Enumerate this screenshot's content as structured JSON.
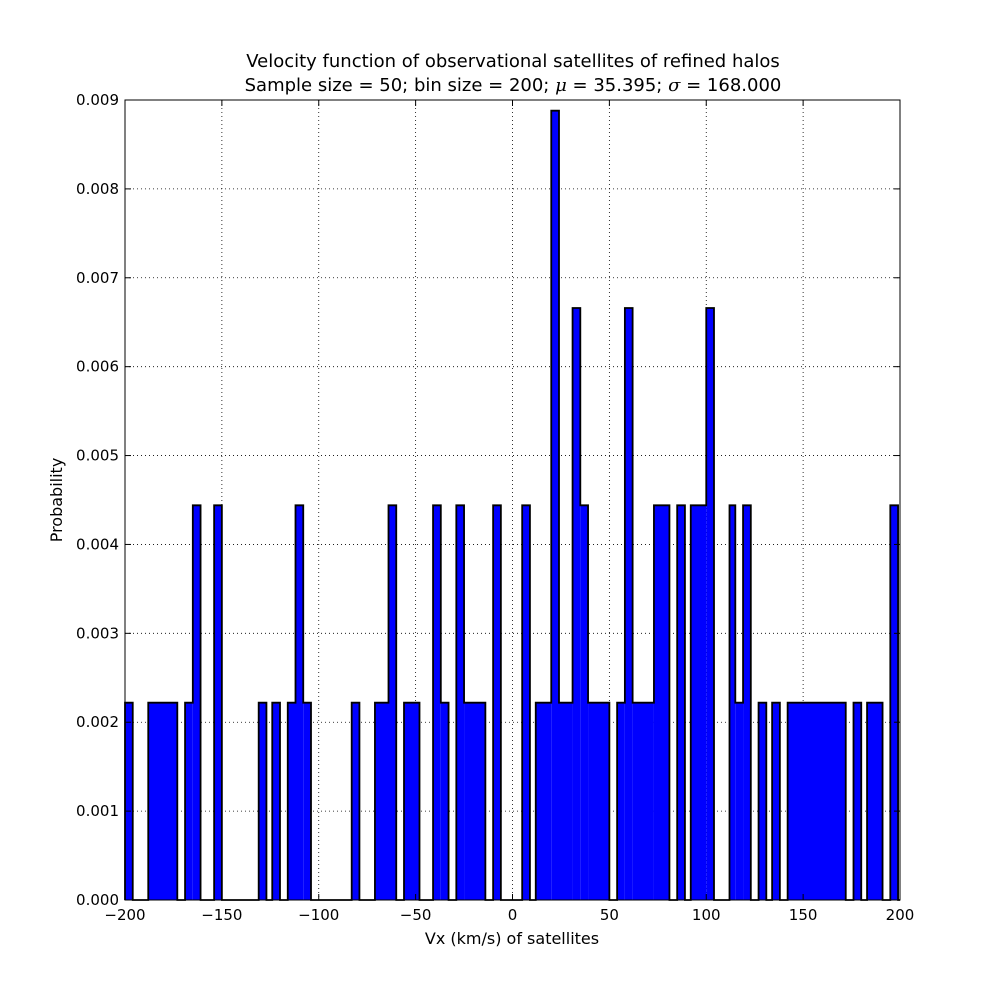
{
  "chart_data": {
    "type": "bar",
    "title": "Velocity function of observational satellites of refined halos",
    "subtitle": {
      "prefix": "Sample size = 50; bin size = 200; ",
      "mu_symbol": "μ",
      "mu_value": " = 35.395; ",
      "sigma_symbol": "σ",
      "sigma_value": " = 168.000"
    },
    "xlabel": "Vx (km/s) of satellites",
    "ylabel": "Probability",
    "xlim": [
      -200,
      200
    ],
    "ylim": [
      0,
      0.009
    ],
    "grid": true,
    "bar_color": "#0000ff",
    "edge_color": "#000000",
    "bin_width": 2,
    "x_ticks": [
      -200,
      -150,
      -100,
      -50,
      0,
      50,
      100,
      150,
      200
    ],
    "x_tick_labels": [
      "−200",
      "−150",
      "−100",
      "−50",
      "0",
      "50",
      "100",
      "150",
      "200"
    ],
    "y_ticks": [
      0,
      0.001,
      0.002,
      0.003,
      0.004,
      0.005,
      0.006,
      0.007,
      0.008,
      0.009
    ],
    "y_tick_labels": [
      "0.000",
      "0.001",
      "0.002",
      "0.003",
      "0.004",
      "0.005",
      "0.006",
      "0.007",
      "0.008",
      "0.009"
    ],
    "unit_value": 0.00222,
    "bins": [
      {
        "x0": -200,
        "x1": -196,
        "units": 1
      },
      {
        "x0": -196,
        "x1": -188,
        "units": 0
      },
      {
        "x0": -188,
        "x1": -173,
        "units": 1
      },
      {
        "x0": -173,
        "x1": -169,
        "units": 0
      },
      {
        "x0": -169,
        "x1": -165,
        "units": 1
      },
      {
        "x0": -165,
        "x1": -161,
        "units": 2
      },
      {
        "x0": -161,
        "x1": -154,
        "units": 0
      },
      {
        "x0": -154,
        "x1": -150,
        "units": 2
      },
      {
        "x0": -150,
        "x1": -131,
        "units": 0
      },
      {
        "x0": -131,
        "x1": -127,
        "units": 1
      },
      {
        "x0": -127,
        "x1": -124,
        "units": 0
      },
      {
        "x0": -124,
        "x1": -120,
        "units": 1
      },
      {
        "x0": -120,
        "x1": -116,
        "units": 0
      },
      {
        "x0": -116,
        "x1": -112,
        "units": 1
      },
      {
        "x0": -112,
        "x1": -108,
        "units": 2
      },
      {
        "x0": -108,
        "x1": -104,
        "units": 1
      },
      {
        "x0": -104,
        "x1": -83,
        "units": 0
      },
      {
        "x0": -83,
        "x1": -79,
        "units": 1
      },
      {
        "x0": -79,
        "x1": -71,
        "units": 0
      },
      {
        "x0": -71,
        "x1": -64,
        "units": 1
      },
      {
        "x0": -64,
        "x1": -60,
        "units": 2
      },
      {
        "x0": -60,
        "x1": -56,
        "units": 0
      },
      {
        "x0": -56,
        "x1": -48,
        "units": 1
      },
      {
        "x0": -48,
        "x1": -41,
        "units": 0
      },
      {
        "x0": -41,
        "x1": -37,
        "units": 2
      },
      {
        "x0": -37,
        "x1": -33,
        "units": 1
      },
      {
        "x0": -33,
        "x1": -29,
        "units": 0
      },
      {
        "x0": -29,
        "x1": -25,
        "units": 2
      },
      {
        "x0": -25,
        "x1": -14,
        "units": 1
      },
      {
        "x0": -14,
        "x1": -10,
        "units": 0
      },
      {
        "x0": -10,
        "x1": -6,
        "units": 2
      },
      {
        "x0": -6,
        "x1": 5,
        "units": 0
      },
      {
        "x0": 5,
        "x1": 9,
        "units": 2
      },
      {
        "x0": 9,
        "x1": 12,
        "units": 0
      },
      {
        "x0": 12,
        "x1": 20,
        "units": 1
      },
      {
        "x0": 20,
        "x1": 24,
        "units": 4
      },
      {
        "x0": 24,
        "x1": 31,
        "units": 1
      },
      {
        "x0": 31,
        "x1": 35,
        "units": 3
      },
      {
        "x0": 35,
        "x1": 39,
        "units": 2
      },
      {
        "x0": 39,
        "x1": 50,
        "units": 1
      },
      {
        "x0": 50,
        "x1": 54,
        "units": 0
      },
      {
        "x0": 54,
        "x1": 58,
        "units": 1
      },
      {
        "x0": 58,
        "x1": 62,
        "units": 3
      },
      {
        "x0": 62,
        "x1": 73,
        "units": 1
      },
      {
        "x0": 73,
        "x1": 81,
        "units": 2
      },
      {
        "x0": 81,
        "x1": 85,
        "units": 0
      },
      {
        "x0": 85,
        "x1": 89,
        "units": 2
      },
      {
        "x0": 89,
        "x1": 92,
        "units": 0
      },
      {
        "x0": 92,
        "x1": 100,
        "units": 2
      },
      {
        "x0": 100,
        "x1": 104,
        "units": 3
      },
      {
        "x0": 104,
        "x1": 112,
        "units": 0
      },
      {
        "x0": 112,
        "x1": 115,
        "units": 2
      },
      {
        "x0": 115,
        "x1": 119,
        "units": 1
      },
      {
        "x0": 119,
        "x1": 123,
        "units": 2
      },
      {
        "x0": 123,
        "x1": 127,
        "units": 0
      },
      {
        "x0": 127,
        "x1": 131,
        "units": 1
      },
      {
        "x0": 131,
        "x1": 134,
        "units": 0
      },
      {
        "x0": 134,
        "x1": 138,
        "units": 1
      },
      {
        "x0": 138,
        "x1": 142,
        "units": 0
      },
      {
        "x0": 142,
        "x1": 172,
        "units": 1
      },
      {
        "x0": 172,
        "x1": 176,
        "units": 0
      },
      {
        "x0": 176,
        "x1": 180,
        "units": 1
      },
      {
        "x0": 180,
        "x1": 183,
        "units": 0
      },
      {
        "x0": 183,
        "x1": 191,
        "units": 1
      },
      {
        "x0": 191,
        "x1": 195,
        "units": 0
      },
      {
        "x0": 195,
        "x1": 199,
        "units": 2
      },
      {
        "x0": 199,
        "x1": 200,
        "units": 0
      }
    ]
  }
}
